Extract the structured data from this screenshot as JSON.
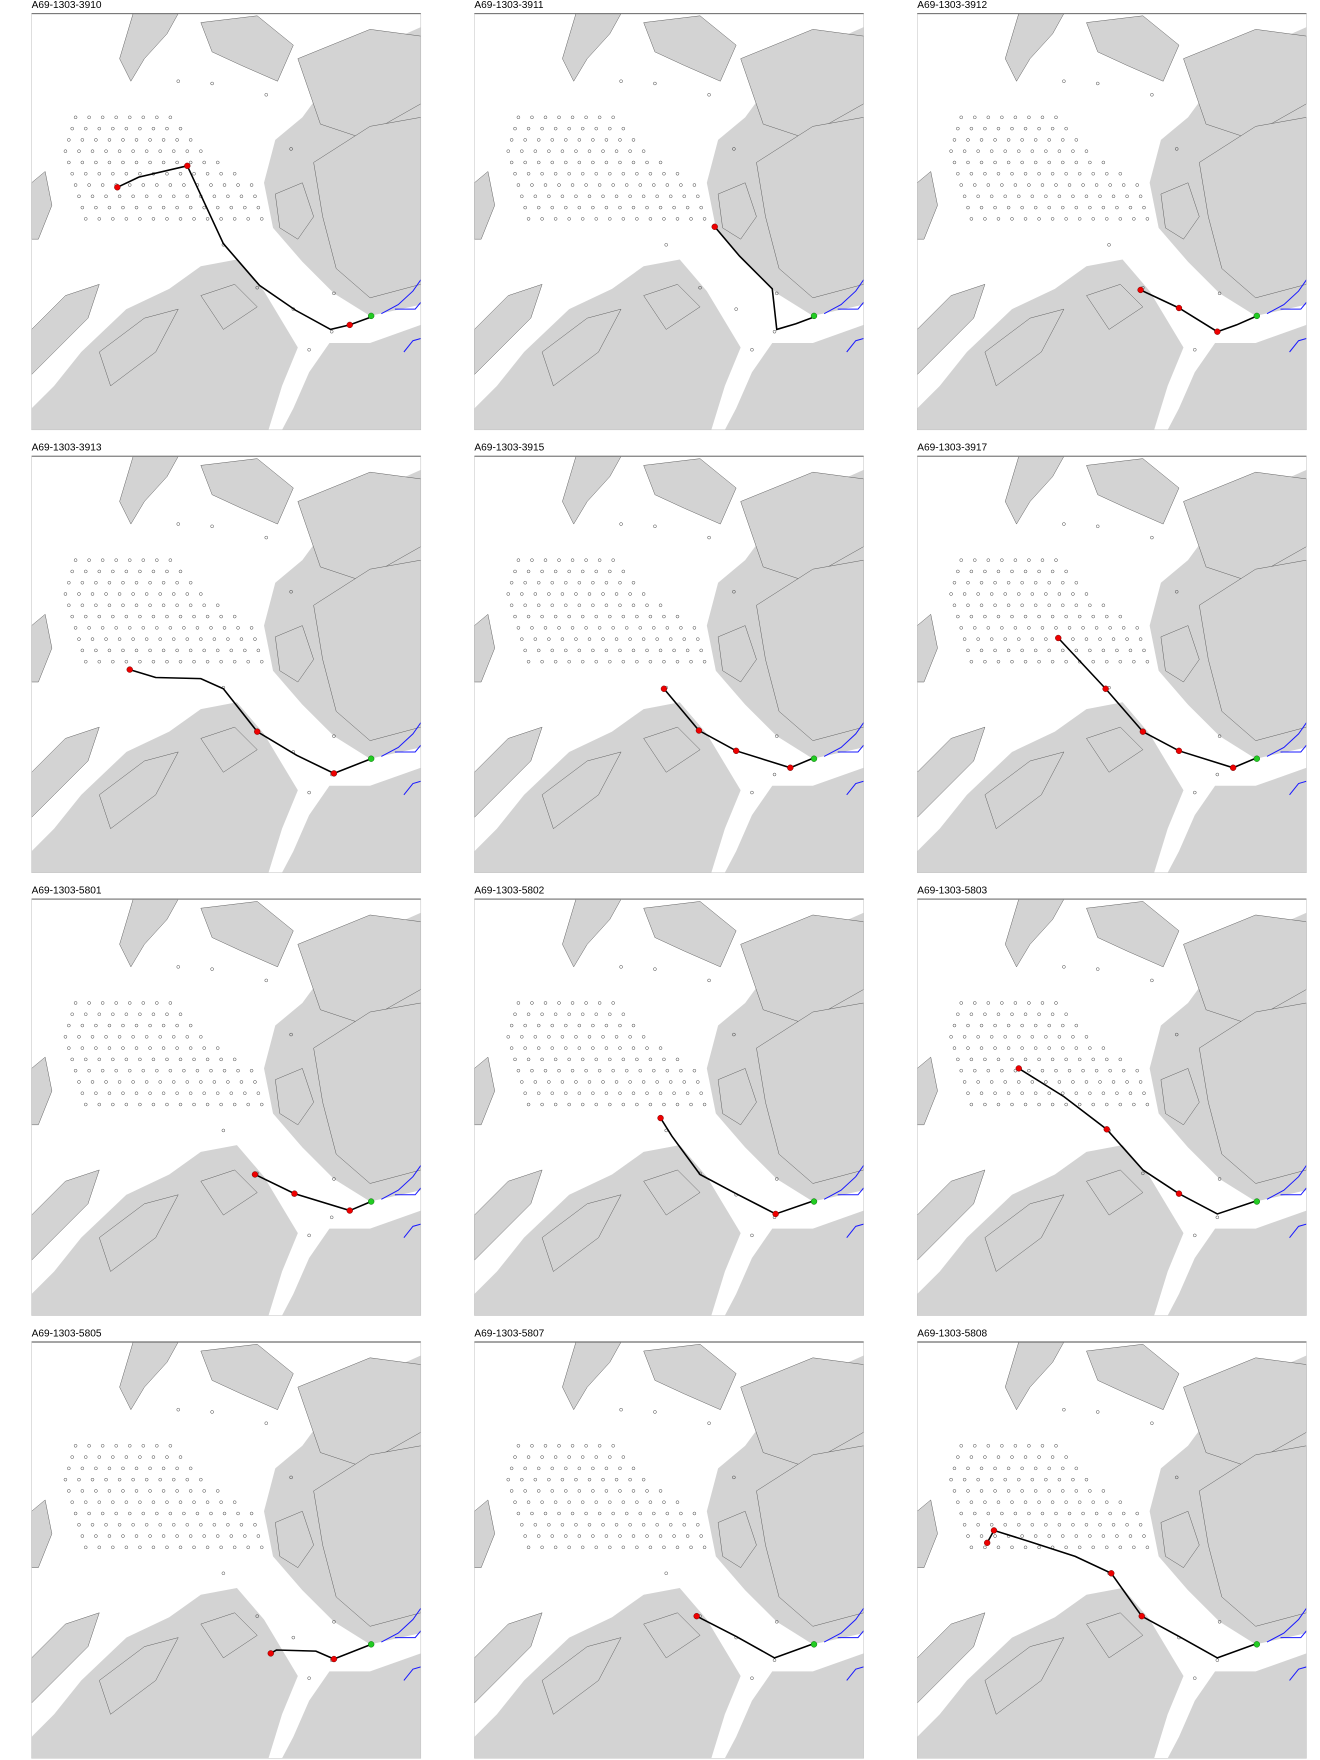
{
  "panels": [
    {
      "title": "A69-1303-3910"
    },
    {
      "title": "A69-1303-3911"
    },
    {
      "title": "A69-1303-3912"
    },
    {
      "title": "A69-1303-3913"
    },
    {
      "title": "A69-1303-3915"
    },
    {
      "title": "A69-1303-3917"
    },
    {
      "title": "A69-1303-5801"
    },
    {
      "title": "A69-1303-5802"
    },
    {
      "title": "A69-1303-5803"
    },
    {
      "title": "A69-1303-5805"
    },
    {
      "title": "A69-1303-5807"
    },
    {
      "title": "A69-1303-5808"
    }
  ]
}
